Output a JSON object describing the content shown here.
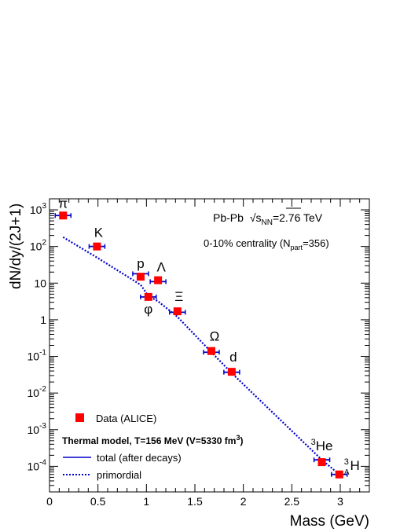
{
  "chart_data": {
    "type": "scatter",
    "xlabel": "Mass (GeV)",
    "ylabel": "dN/dy/(2J+1)",
    "xlim": [
      0,
      3.3
    ],
    "ylim": [
      2e-05,
      2000
    ],
    "y_scale": "log",
    "x_ticks": [
      "0",
      "0.5",
      "1",
      "1.5",
      "2",
      "2.5",
      "3"
    ],
    "y_ticks": [
      {
        "base": "10",
        "exp": "3"
      },
      {
        "base": "10",
        "exp": "2"
      },
      {
        "base": "10",
        "exp": ""
      },
      {
        "base": "1",
        "exp": ""
      },
      {
        "base": "10",
        "exp": "-1"
      },
      {
        "base": "10",
        "exp": "-2"
      },
      {
        "base": "10",
        "exp": "-3"
      },
      {
        "base": "10",
        "exp": "-4"
      }
    ],
    "annotations": {
      "system_pre": "Pb-Pb",
      "sqrt_sym": "√",
      "s": "s",
      "nn": "NN",
      "energy": "=2.76 TeV",
      "centrality_pre": "0-10% centrality (N",
      "part": "part",
      "centrality_post": "=356)"
    },
    "legend": {
      "data": "Data (ALICE)",
      "model_header": "Thermal model, T=156 MeV (V=5330 fm",
      "model_header_exp": "3",
      "model_header_close": ")",
      "total": "total (after decays)",
      "primordial": "primordial"
    },
    "series": [
      {
        "name": "Data (ALICE)",
        "color": "#ff0000",
        "points": [
          {
            "label": "π",
            "x": 0.14,
            "y": 700
          },
          {
            "label": "K",
            "x": 0.49,
            "y": 100
          },
          {
            "label": "p",
            "x": 0.94,
            "y": 15
          },
          {
            "label": "Λ",
            "x": 1.12,
            "y": 12
          },
          {
            "label": "φ",
            "x": 1.02,
            "y": 4.2
          },
          {
            "label": "Ξ",
            "x": 1.32,
            "y": 1.7
          },
          {
            "label": "Ω",
            "x": 1.67,
            "y": 0.14
          },
          {
            "label": "d",
            "x": 1.88,
            "y": 0.038
          },
          {
            "label": "He",
            "label_sup": "3",
            "x": 2.81,
            "y": 0.00013
          },
          {
            "label": "H",
            "label_sup": "3",
            "label_sub": "Λ",
            "x": 2.99,
            "y": 6e-05
          }
        ]
      },
      {
        "name": "primordial",
        "color": "#0000cc",
        "style": "dotted",
        "x": [
          0.14,
          0.49,
          0.94,
          1.02,
          1.12,
          1.32,
          1.67,
          1.88,
          2.81,
          2.99
        ],
        "y": [
          180,
          50,
          9,
          4.5,
          3.2,
          1.2,
          0.13,
          0.035,
          0.00015,
          6e-05
        ]
      },
      {
        "name": "total (after decays)",
        "color": "#0000cc",
        "style": "solid",
        "model_marks": [
          {
            "x": 0.14,
            "y": 700
          },
          {
            "x": 0.49,
            "y": 100
          },
          {
            "x": 0.94,
            "y": 18
          },
          {
            "x": 1.02,
            "y": 4.2
          },
          {
            "x": 1.12,
            "y": 11
          },
          {
            "x": 1.32,
            "y": 1.6
          },
          {
            "x": 1.67,
            "y": 0.13
          },
          {
            "x": 1.88,
            "y": 0.037
          },
          {
            "x": 2.81,
            "y": 0.00015
          },
          {
            "x": 2.99,
            "y": 6e-05
          }
        ]
      }
    ]
  }
}
